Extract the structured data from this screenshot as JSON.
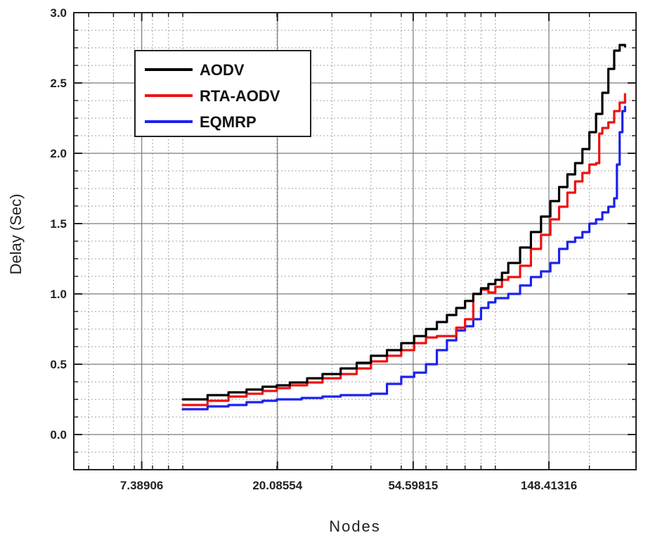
{
  "chart_data": {
    "type": "line",
    "xlabel": "Nodes",
    "ylabel": "Delay (Sec)",
    "x_scale": "log",
    "x_ticks": [
      7.38906,
      20.08554,
      54.59815,
      148.41316
    ],
    "x_tick_labels": [
      "7.38906",
      "20.08554",
      "54.59815",
      "148.41316"
    ],
    "xlim": [
      4.48,
      282
    ],
    "ylim": [
      -0.25,
      3.0
    ],
    "y_ticks": [
      0.0,
      0.5,
      1.0,
      1.5,
      2.0,
      2.5,
      3.0
    ],
    "y_tick_labels": [
      "0.0",
      "0.5",
      "1.0",
      "1.5",
      "2.0",
      "2.5",
      "3.0"
    ],
    "grid": true,
    "legend_position": "top-left",
    "series": [
      {
        "name": "AODV",
        "color": "#000000",
        "x": [
          10,
          12,
          14,
          16,
          18,
          20,
          22,
          25,
          28,
          32,
          36,
          40,
          45,
          50,
          55,
          60,
          65,
          70,
          75,
          80,
          85,
          90,
          95,
          100,
          105,
          110,
          120,
          130,
          140,
          150,
          160,
          170,
          180,
          190,
          200,
          210,
          220,
          230,
          240,
          250,
          260
        ],
        "y": [
          0.25,
          0.28,
          0.3,
          0.32,
          0.34,
          0.35,
          0.37,
          0.4,
          0.43,
          0.47,
          0.51,
          0.56,
          0.6,
          0.65,
          0.7,
          0.75,
          0.8,
          0.85,
          0.9,
          0.95,
          1.0,
          1.04,
          1.07,
          1.1,
          1.15,
          1.22,
          1.33,
          1.44,
          1.55,
          1.66,
          1.76,
          1.85,
          1.93,
          2.03,
          2.15,
          2.28,
          2.43,
          2.6,
          2.73,
          2.77,
          2.76
        ]
      },
      {
        "name": "RTA-AODV",
        "color": "#ee1111",
        "x": [
          10,
          12,
          14,
          16,
          18,
          20,
          22,
          25,
          28,
          32,
          36,
          40,
          45,
          50,
          55,
          60,
          65,
          70,
          75,
          80,
          85,
          90,
          95,
          100,
          105,
          110,
          120,
          130,
          140,
          150,
          160,
          170,
          180,
          190,
          200,
          210,
          215,
          220,
          230,
          240,
          250,
          260
        ],
        "y": [
          0.21,
          0.24,
          0.27,
          0.29,
          0.31,
          0.33,
          0.35,
          0.37,
          0.4,
          0.43,
          0.47,
          0.52,
          0.56,
          0.6,
          0.65,
          0.69,
          0.7,
          0.7,
          0.76,
          0.82,
          1.0,
          1.03,
          1.01,
          1.05,
          1.1,
          1.12,
          1.2,
          1.32,
          1.42,
          1.53,
          1.62,
          1.72,
          1.8,
          1.86,
          1.92,
          1.93,
          2.14,
          2.18,
          2.22,
          2.3,
          2.36,
          2.42
        ]
      },
      {
        "name": "EQMRP",
        "color": "#1a22ee",
        "x": [
          10,
          12,
          14,
          16,
          18,
          20,
          24,
          28,
          32,
          36,
          40,
          45,
          50,
          55,
          60,
          65,
          70,
          75,
          80,
          85,
          90,
          95,
          100,
          110,
          120,
          130,
          140,
          150,
          160,
          170,
          180,
          190,
          200,
          210,
          220,
          230,
          240,
          245,
          250,
          255,
          260
        ],
        "y": [
          0.18,
          0.2,
          0.21,
          0.23,
          0.24,
          0.25,
          0.26,
          0.27,
          0.28,
          0.28,
          0.29,
          0.36,
          0.41,
          0.44,
          0.5,
          0.6,
          0.67,
          0.74,
          0.77,
          0.82,
          0.9,
          0.94,
          0.97,
          1.0,
          1.06,
          1.12,
          1.16,
          1.22,
          1.32,
          1.37,
          1.4,
          1.44,
          1.5,
          1.53,
          1.58,
          1.62,
          1.68,
          1.92,
          2.15,
          2.3,
          2.33
        ]
      }
    ]
  }
}
